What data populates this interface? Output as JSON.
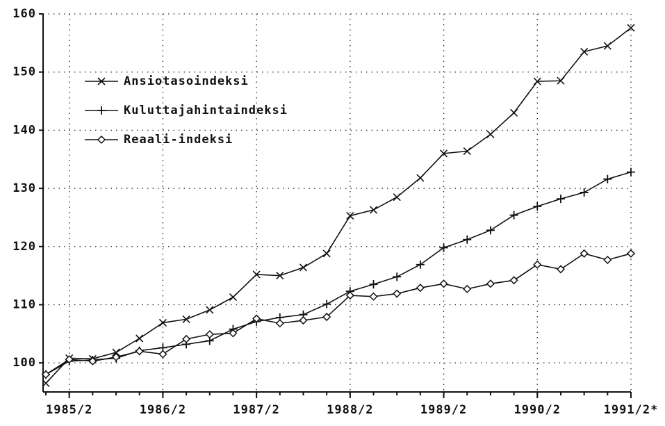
{
  "chart_data": {
    "type": "line",
    "categories": [
      null,
      "1985/2",
      null,
      null,
      null,
      "1986/2",
      null,
      null,
      null,
      "1987/2",
      null,
      null,
      null,
      "1988/2",
      null,
      null,
      null,
      "1989/2",
      null,
      null,
      null,
      "1990/2",
      null,
      null,
      null,
      "1991/2*"
    ],
    "series": [
      {
        "name": "Ansiotasoindeksi",
        "color": "#111111",
        "marker": "x",
        "values": [
          96.5,
          100.8,
          100.7,
          101.8,
          104.2,
          106.9,
          107.5,
          109.1,
          111.3,
          115.2,
          115.0,
          116.4,
          118.8,
          125.3,
          126.3,
          128.5,
          131.8,
          136.0,
          136.4,
          139.3,
          143.0,
          148.4,
          148.5,
          153.5,
          154.5,
          157.6
        ]
      },
      {
        "name": "Kuluttajahintaindeksi",
        "color": "#111111",
        "marker": "plus",
        "values": [
          98.0,
          100.3,
          100.5,
          100.8,
          102.1,
          102.6,
          103.2,
          103.8,
          105.8,
          107.1,
          107.8,
          108.3,
          110.1,
          112.3,
          113.5,
          114.8,
          116.9,
          119.8,
          121.2,
          122.8,
          125.4,
          126.9,
          128.2,
          129.3,
          131.6,
          132.8
        ]
      },
      {
        "name": "Reaali-indeksi",
        "color": "#111111",
        "marker": "diamond",
        "values": [
          98.0,
          100.6,
          100.3,
          101.0,
          102.0,
          101.5,
          104.1,
          104.9,
          105.1,
          107.6,
          106.8,
          107.3,
          107.9,
          111.6,
          111.4,
          111.9,
          112.9,
          113.6,
          112.7,
          113.6,
          114.2,
          116.9,
          116.1,
          118.8,
          117.7,
          118.8
        ]
      }
    ],
    "ylim": [
      95,
      160
    ],
    "yticks": [
      100,
      110,
      120,
      130,
      140,
      150,
      160
    ],
    "grid": true,
    "legend": "upper left"
  }
}
